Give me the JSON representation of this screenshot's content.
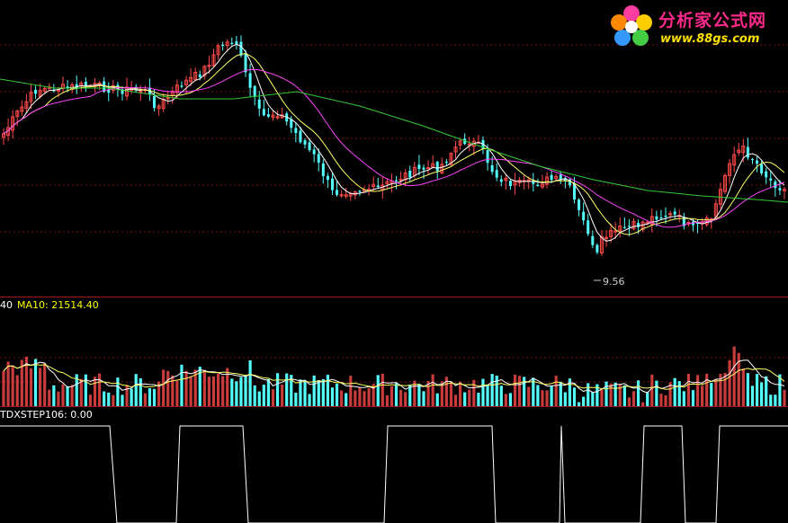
{
  "colors": {
    "background": "#000000",
    "grid": "#7a1010",
    "up": "#ff4a4a",
    "down": "#54ffff",
    "vol_up": "#c83c3c",
    "ma5": "#ffffff",
    "ma10": "#ffff66",
    "ma20": "#ff44ff",
    "ma60": "#33cc33",
    "step": "#ffffff"
  },
  "watermark": {
    "brand_text": "分析家公式网",
    "url_text": "www.88gs.com"
  },
  "panels": {
    "volume_ma5_label": "40",
    "volume_ma10_label": "MA10: 21514.40",
    "indicator_label": "TDXSTEP106: 0.00",
    "low_marker_label": "9.56"
  },
  "chart_data": {
    "type": "candlestick",
    "price_annotation": {
      "label": "9.56",
      "value": 9.56
    },
    "volume": {
      "ma10": 21514.4
    },
    "indicator": {
      "name": "TDXSTEP106",
      "last_value": 0.0
    }
  }
}
